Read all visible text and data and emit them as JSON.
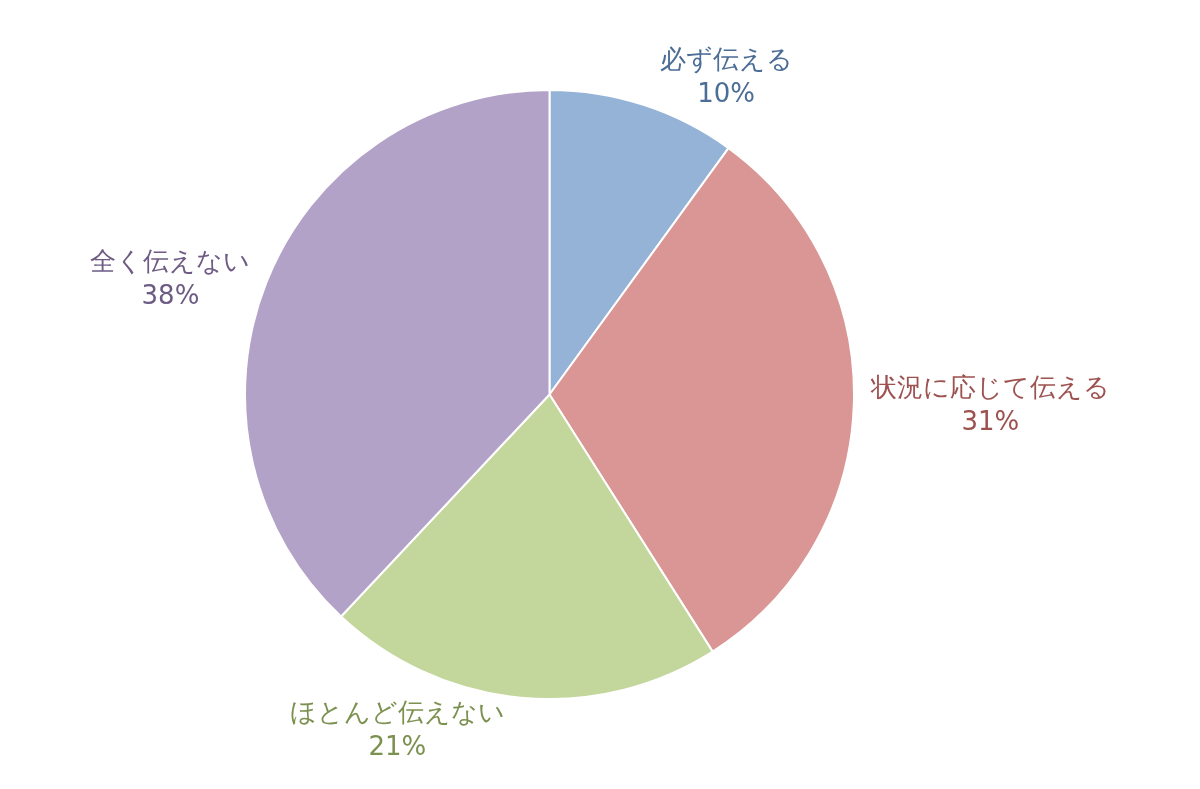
{
  "chart_data": {
    "type": "pie",
    "categories": [
      "必ず伝える",
      "状況に応じて伝える",
      "ほとんど伝えない",
      "全く伝えない"
    ],
    "values": [
      10,
      31,
      21,
      38
    ],
    "colors": [
      "#95b3d7",
      "#d99694",
      "#c3d69b",
      "#b3a2c7"
    ],
    "value_labels": [
      "10%",
      "31%",
      "21%",
      "38%"
    ],
    "legend": false
  }
}
